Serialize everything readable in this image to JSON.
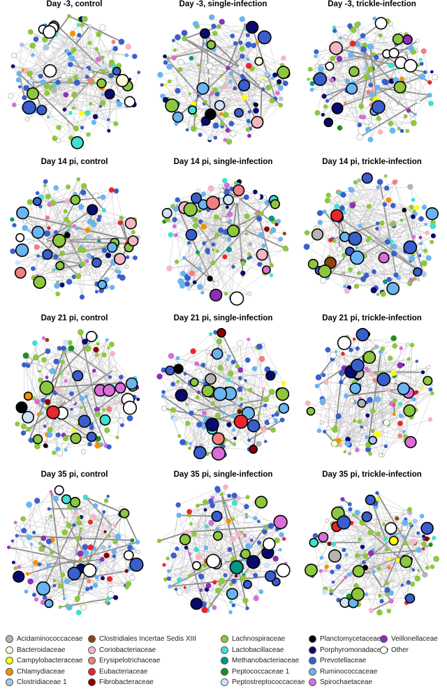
{
  "panels": [
    {
      "title": "Day -3, control"
    },
    {
      "title": "Day -3, single-infection"
    },
    {
      "title": "Day -3, trickle-infection"
    },
    {
      "title": "Day 14 pi, control"
    },
    {
      "title": "Day 14 pi, single-infection"
    },
    {
      "title": "Day 14 pi, trickle-infection"
    },
    {
      "title": "Day 21 pi, control"
    },
    {
      "title": "Day 21 pi, single-infection"
    },
    {
      "title": "Day 21 pi, trickle-infection"
    },
    {
      "title": "Day 35 pi, control"
    },
    {
      "title": "Day 35 pi, single-infection"
    },
    {
      "title": "Day 35 pi, trickle-infection"
    }
  ],
  "legend": [
    {
      "label": "Acidaminococcaceae",
      "color": "#b4b4b4"
    },
    {
      "label": "Bacteroidaceae",
      "color": "#fffbd6"
    },
    {
      "label": "Campylobacteraceae",
      "color": "#ffff00"
    },
    {
      "label": "Chlamydiaceae",
      "color": "#f39200"
    },
    {
      "label": "Clostridiaceae 1",
      "color": "#a7c7e7"
    },
    {
      "label": "Clostridiales Incertae Sedis XIII",
      "color": "#8b4513"
    },
    {
      "label": "Coriobacteriaceae",
      "color": "#f4b6c2"
    },
    {
      "label": "Erysipelotrichaceae",
      "color": "#f08080"
    },
    {
      "label": "Eubacteriaceae",
      "color": "#e8262b"
    },
    {
      "label": "Fibrobacteraceae",
      "color": "#8b0000"
    },
    {
      "label": "Lachnospiraceae",
      "color": "#8dc63f"
    },
    {
      "label": "Lactobacillaceae",
      "color": "#40e0d0"
    },
    {
      "label": "Methanobacteriaceae",
      "color": "#009688"
    },
    {
      "label": "Peptococcaceae 1",
      "color": "#228b22"
    },
    {
      "label": "Peptostreptococcaceae",
      "color": "#cfe3f7"
    },
    {
      "label": "Planctomycetaceae",
      "color": "#000000"
    },
    {
      "label": "Porphyromonadaceae",
      "color": "#0a0a6e"
    },
    {
      "label": "Prevotellaceae",
      "color": "#3a5fcd"
    },
    {
      "label": "Ruminococcaceae",
      "color": "#6ab4f0"
    },
    {
      "label": "Spirochaetaceae",
      "color": "#d86ed8"
    },
    {
      "label": "Veillonellaceae",
      "color": "#8e2fb8"
    },
    {
      "label": "Other",
      "color": "#ffffff"
    }
  ]
}
